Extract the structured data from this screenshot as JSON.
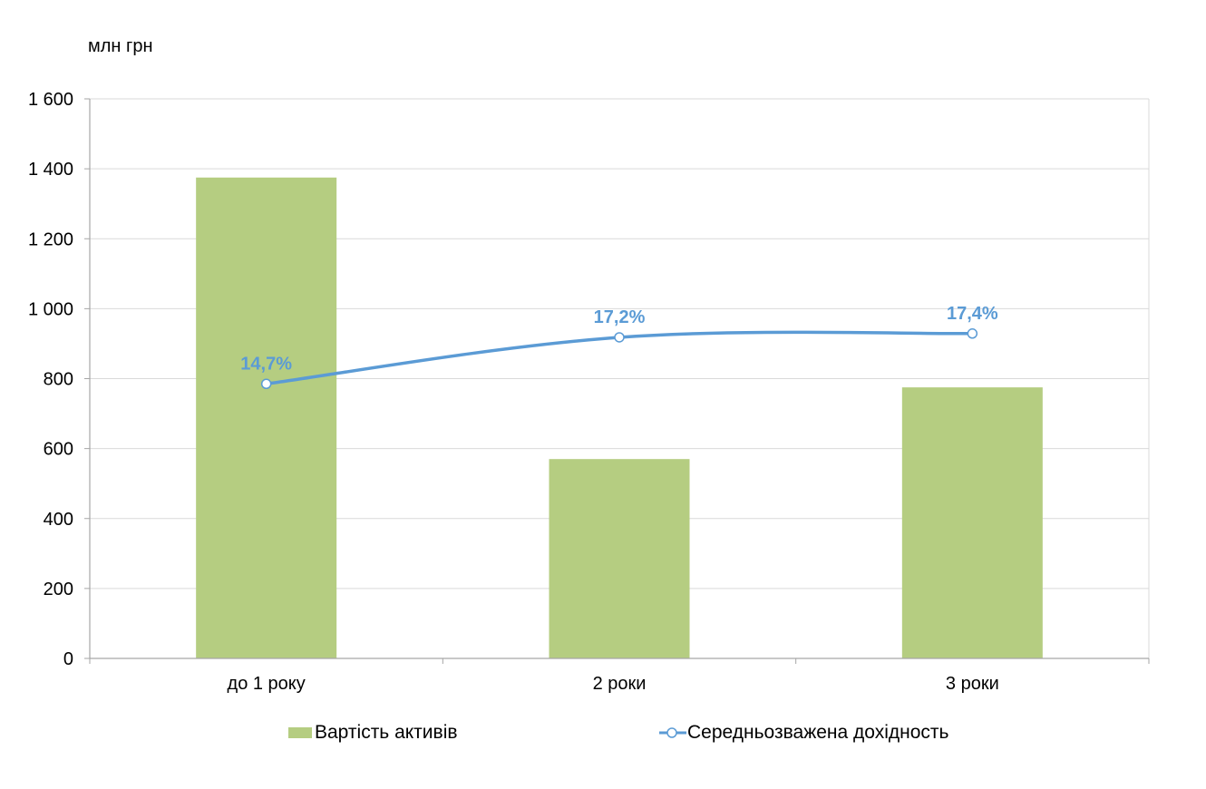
{
  "chart_data": {
    "type": "bar",
    "unit_label": "млн грн",
    "categories": [
      "до 1 року",
      "2 роки",
      "3 роки"
    ],
    "ylim": [
      0,
      1600
    ],
    "y_ticks": [
      0,
      200,
      400,
      600,
      800,
      1000,
      1200,
      1400,
      1600
    ],
    "y_tick_labels": [
      "0",
      "200",
      "400",
      "600",
      "800",
      "1 000",
      "1 200",
      "1 400",
      "1 600"
    ],
    "grid": true,
    "legend_position": "bottom",
    "series": [
      {
        "name": "Вартість активів",
        "kind": "bar",
        "color": "#b5cd81",
        "values": [
          1375,
          570,
          775
        ]
      },
      {
        "name": "Середньозважена дохідность",
        "kind": "line",
        "smooth": true,
        "color": "#5b9bd5",
        "values_percent": [
          14.7,
          17.2,
          17.4
        ],
        "plotted_on_axis_at": [
          785,
          918,
          929
        ],
        "data_labels": [
          "14,7%",
          "17,2%",
          "17,4%"
        ]
      }
    ]
  }
}
